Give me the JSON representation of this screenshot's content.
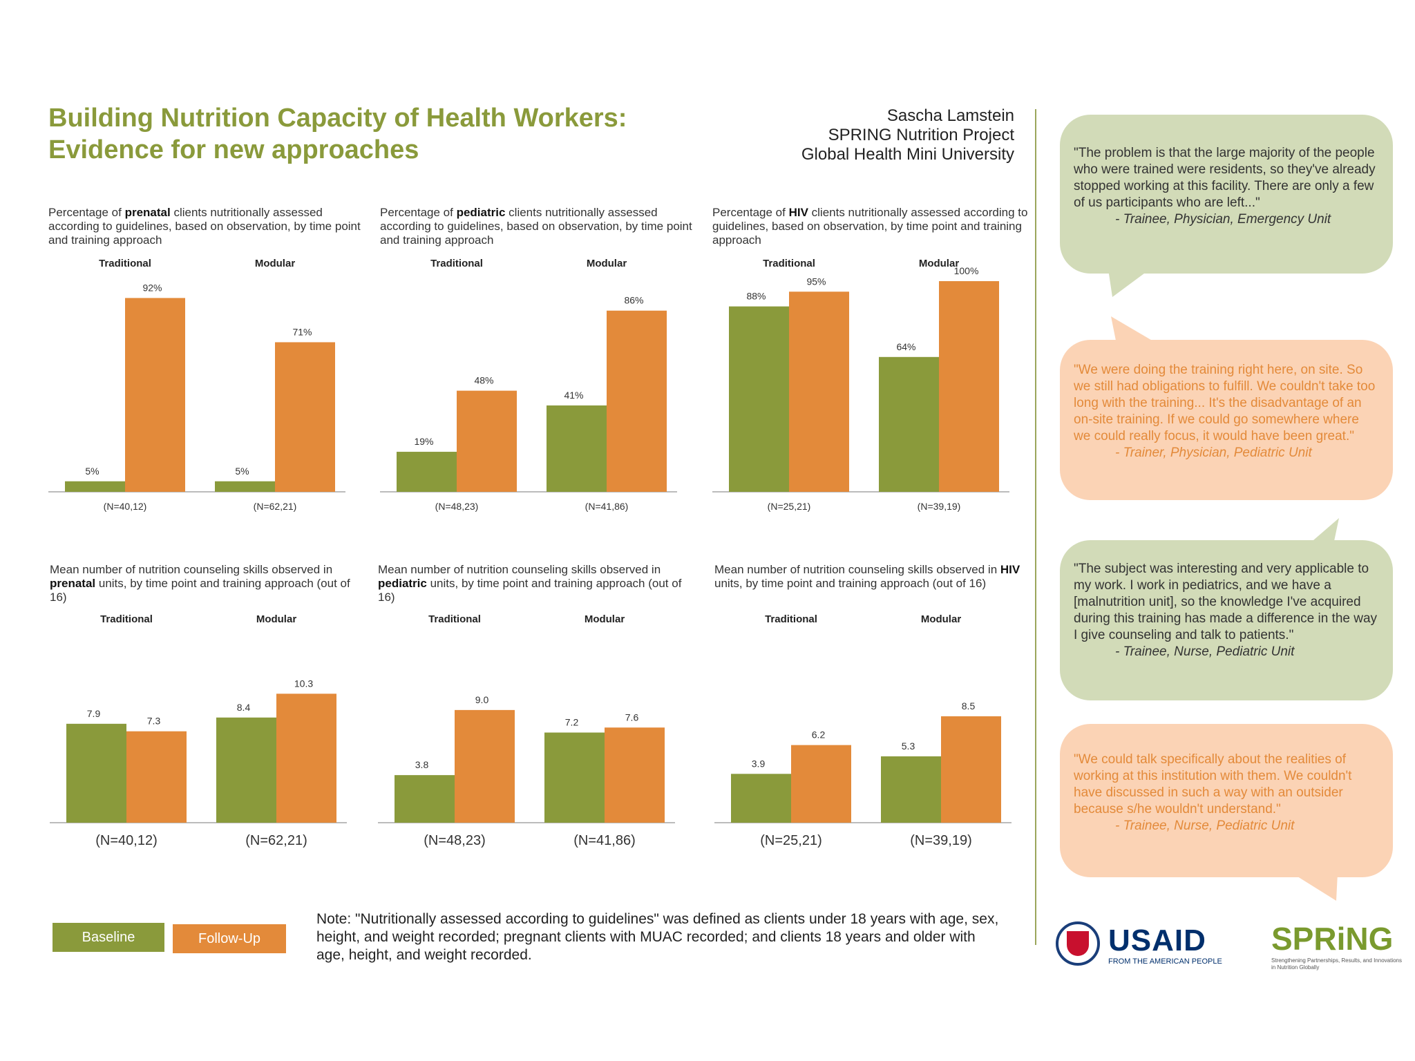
{
  "header": {
    "title_line1": "Building Nutrition Capacity of Health Workers:",
    "title_line2": "Evidence for new approaches",
    "author_line1": "Sascha Lamstein",
    "author_line2": "SPRING Nutrition Project",
    "author_line3": "Global Health Mini University"
  },
  "colors": {
    "baseline": "#8a9a3b",
    "followup": "#e38a3a",
    "axis": "#bbbbbb"
  },
  "chart_data": [
    {
      "type": "bar",
      "caption_pre": "Percentage of ",
      "caption_bold": "prenatal",
      "caption_post": " clients nutritionally assessed according to guidelines, based on observation, by time point and training approach",
      "groups": [
        "Traditional",
        "Modular"
      ],
      "series": [
        {
          "name": "Baseline",
          "values": [
            5,
            5
          ]
        },
        {
          "name": "Follow-Up",
          "values": [
            92,
            71
          ]
        }
      ],
      "labels": [
        [
          "5%",
          "92%"
        ],
        [
          "5%",
          "71%"
        ]
      ],
      "n_labels": [
        "(N=40,12)",
        "(N=62,21)"
      ],
      "ylim": [
        0,
        100
      ]
    },
    {
      "type": "bar",
      "caption_pre": "Percentage of ",
      "caption_bold": "pediatric",
      "caption_post": " clients nutritionally assessed according to guidelines, based on observation, by time point and training approach",
      "groups": [
        "Traditional",
        "Modular"
      ],
      "series": [
        {
          "name": "Baseline",
          "values": [
            19,
            41
          ]
        },
        {
          "name": "Follow-Up",
          "values": [
            48,
            86
          ]
        }
      ],
      "labels": [
        [
          "19%",
          "48%"
        ],
        [
          "41%",
          "86%"
        ]
      ],
      "n_labels": [
        "(N=48,23)",
        "(N=41,86)"
      ],
      "ylim": [
        0,
        100
      ]
    },
    {
      "type": "bar",
      "caption_pre": "Percentage of ",
      "caption_bold": "HIV",
      "caption_post": " clients nutritionally assessed according to guidelines, based on observation, by time point and training approach",
      "groups": [
        "Traditional",
        "Modular"
      ],
      "series": [
        {
          "name": "Baseline",
          "values": [
            88,
            64
          ]
        },
        {
          "name": "Follow-Up",
          "values": [
            95,
            100
          ]
        }
      ],
      "labels": [
        [
          "88%",
          "95%"
        ],
        [
          "64%",
          "100%"
        ]
      ],
      "n_labels": [
        "(N=25,21)",
        "(N=39,19)"
      ],
      "ylim": [
        0,
        100
      ]
    },
    {
      "type": "bar",
      "caption_pre": "Mean number of nutrition counseling skills observed in ",
      "caption_bold": "prenatal",
      "caption_post": " units, by time point and training approach (out of 16)",
      "groups": [
        "Traditional",
        "Modular"
      ],
      "series": [
        {
          "name": "Baseline",
          "values": [
            7.9,
            8.4
          ]
        },
        {
          "name": "Follow-Up",
          "values": [
            7.3,
            10.3
          ]
        }
      ],
      "labels": [
        [
          "7.9",
          "7.3"
        ],
        [
          "8.4",
          "10.3"
        ]
      ],
      "n_labels": [
        "(N=40,12)",
        "(N=62,21)"
      ],
      "ylim": [
        0,
        16
      ]
    },
    {
      "type": "bar",
      "caption_pre": "Mean number of nutrition counseling skills observed in ",
      "caption_bold": "pediatric",
      "caption_post": " units, by time point and training approach (out of 16)",
      "groups": [
        "Traditional",
        "Modular"
      ],
      "series": [
        {
          "name": "Baseline",
          "values": [
            3.8,
            7.2
          ]
        },
        {
          "name": "Follow-Up",
          "values": [
            9.0,
            7.6
          ]
        }
      ],
      "labels": [
        [
          "3.8",
          "9.0"
        ],
        [
          "7.2",
          "7.6"
        ]
      ],
      "n_labels": [
        "(N=48,23)",
        "(N=41,86)"
      ],
      "ylim": [
        0,
        16
      ]
    },
    {
      "type": "bar",
      "caption_pre": "Mean number of nutrition counseling skills observed in ",
      "caption_bold": "HIV",
      "caption_post": " units, by time point and training approach (out of 16)",
      "groups": [
        "Traditional",
        "Modular"
      ],
      "series": [
        {
          "name": "Baseline",
          "values": [
            3.9,
            5.3
          ]
        },
        {
          "name": "Follow-Up",
          "values": [
            6.2,
            8.5
          ]
        }
      ],
      "labels": [
        [
          "3.9",
          "6.2"
        ],
        [
          "5.3",
          "8.5"
        ]
      ],
      "n_labels": [
        "(N=25,21)",
        "(N=39,19)"
      ],
      "ylim": [
        0,
        16
      ]
    }
  ],
  "legend": {
    "baseline": "Baseline",
    "followup": "Follow-Up"
  },
  "note": "Note: \"Nutritionally assessed according to guidelines\" was defined as clients under 18 years with age, sex, height, and weight recorded; pregnant clients with MUAC recorded; and clients 18 years and older with age, height, and weight recorded.",
  "quotes": [
    {
      "text": "\"The problem is that the large majority of the people who were trained were residents, so they've already stopped working at this facility. There are only a few of us participants who are left...\"",
      "attribution": "- Trainee, Physician, Emergency Unit"
    },
    {
      "text": "\"We were doing the training right here, on site. So we still had obligations to fulfill. We couldn't take too long with the training... It's the disadvantage of an on-site training. If we could go somewhere where we could really focus, it would have been great.\"",
      "attribution": "- Trainer, Physician, Pediatric Unit"
    },
    {
      "text": "\"The subject was interesting and very applicable to my work. I work in pediatrics, and we have a [malnutrition unit], so the knowledge I've acquired during this training has made a difference in the way I give counseling and talk to patients.\"",
      "attribution": "- Trainee, Nurse, Pediatric Unit"
    },
    {
      "text": "\"We could talk specifically about the realities of working at this institution with them. We couldn't have discussed in such a way with an outsider because s/he wouldn't understand.\"",
      "attribution": "- Trainee, Nurse, Pediatric Unit"
    }
  ],
  "logos": {
    "usaid": "USAID",
    "usaid_sub": "FROM THE AMERICAN PEOPLE",
    "spring": "SPRiNG",
    "spring_sub": "Strengthening Partnerships, Results, and Innovations in Nutrition Globally"
  }
}
